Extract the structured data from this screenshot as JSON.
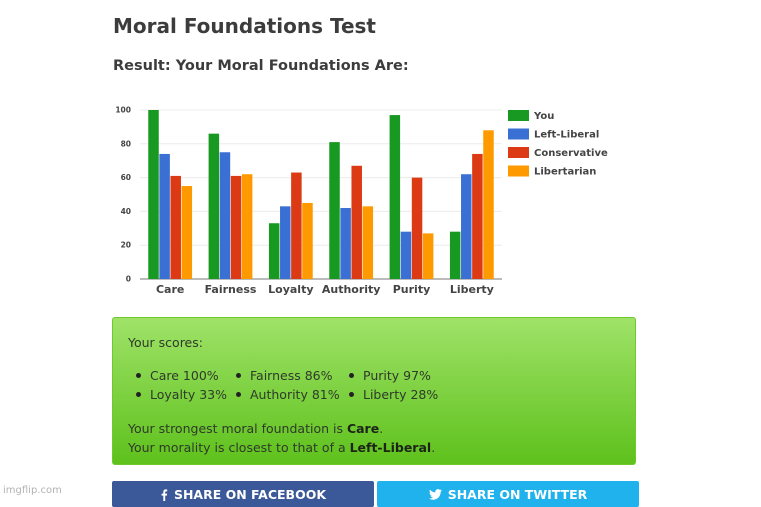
{
  "header": {
    "title": "Moral Foundations Test",
    "subtitle": "Result: Your Moral Foundations Are:"
  },
  "chart_data": {
    "type": "bar",
    "categories": [
      "Care",
      "Fairness",
      "Loyalty",
      "Authority",
      "Purity",
      "Liberty"
    ],
    "series": [
      {
        "name": "You",
        "color": "#189a22",
        "values": [
          100,
          86,
          33,
          81,
          97,
          28
        ]
      },
      {
        "name": "Left-Liberal",
        "color": "#3a6fd3",
        "values": [
          74,
          75,
          43,
          42,
          28,
          62
        ]
      },
      {
        "name": "Conservative",
        "color": "#dc3a14",
        "values": [
          61,
          61,
          63,
          67,
          60,
          74
        ]
      },
      {
        "name": "Libertarian",
        "color": "#fe9a00",
        "values": [
          55,
          62,
          45,
          43,
          27,
          88
        ]
      }
    ],
    "yticks": [
      "0",
      "20",
      "40",
      "60",
      "80",
      "100"
    ],
    "ylim": [
      0,
      100
    ],
    "grid": true,
    "legend": "right",
    "title": "",
    "xlabel": "",
    "ylabel": ""
  },
  "scores": {
    "heading": "Your scores:",
    "items": [
      "Care 100%",
      "Fairness 86%",
      "Purity 97%",
      "Loyalty 33%",
      "Authority 81%",
      "Liberty 28%"
    ],
    "strongest_prefix": "Your strongest moral foundation is ",
    "strongest_value": "Care",
    "strongest_suffix": ".",
    "closest_prefix": "Your morality is closest to that of a ",
    "closest_value": "Left-Liberal",
    "closest_suffix": "."
  },
  "share": {
    "facebook_label": "SHARE ON FACEBOOK",
    "twitter_label": "SHARE ON TWITTER",
    "facebook_icon": "facebook-icon",
    "twitter_icon": "twitter-icon"
  },
  "watermark": "imgflip.com",
  "colors": {
    "box_top": "#9fe268",
    "box_bottom": "#5ec11c",
    "facebook": "#3b5998",
    "twitter": "#1fb2ec"
  }
}
